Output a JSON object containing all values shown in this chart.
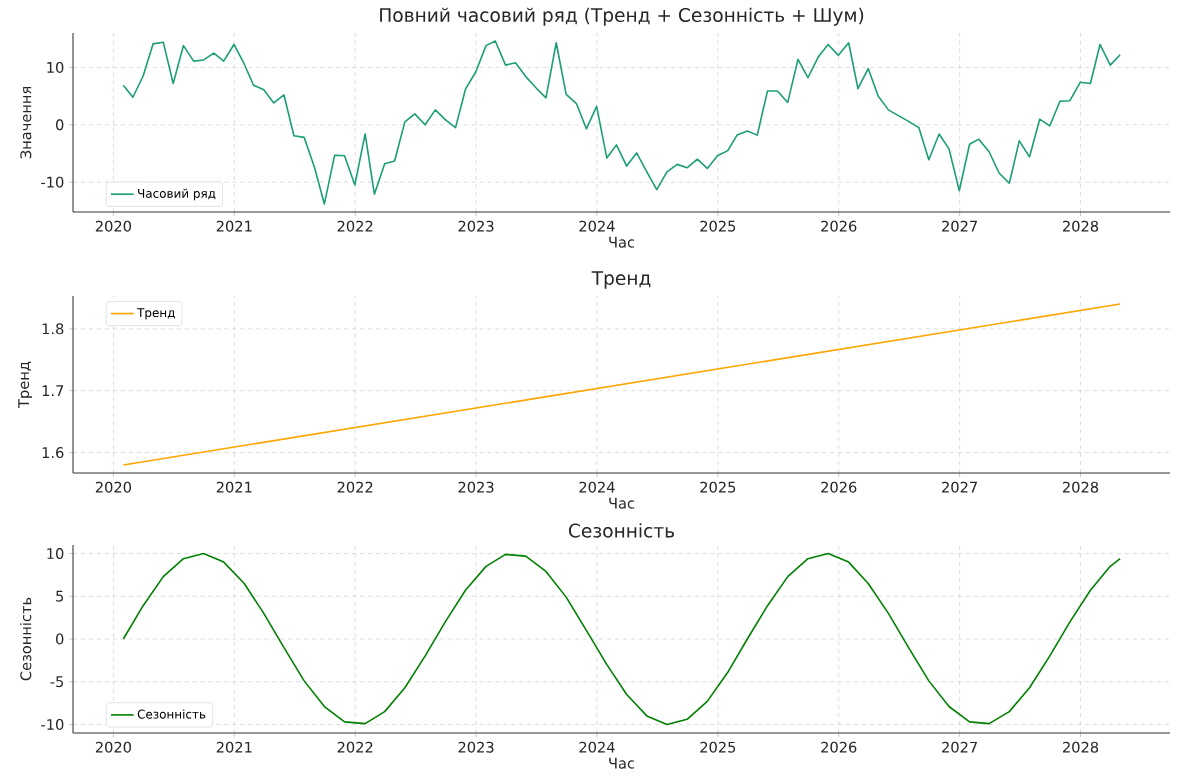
{
  "chart_data": [
    {
      "type": "line",
      "title": "Повний часовий ряд (Тренд + Сезонність + Шум)",
      "xlabel": "Час",
      "ylabel": "Значення",
      "x": [
        "2020-01-31",
        "2020-02-29",
        "2020-03-31",
        "2020-04-30",
        "2020-05-31",
        "2020-06-30",
        "2020-07-31",
        "2020-08-31",
        "2020-09-30",
        "2020-10-31",
        "2020-11-30",
        "2020-12-31",
        "2021-01-31",
        "2021-02-28",
        "2021-03-31",
        "2021-04-30",
        "2021-05-31",
        "2021-06-30",
        "2021-07-31",
        "2021-08-31",
        "2021-09-30",
        "2021-10-31",
        "2021-11-30",
        "2021-12-31",
        "2022-01-31",
        "2022-02-28",
        "2022-03-31",
        "2022-04-30",
        "2022-05-31",
        "2022-06-30",
        "2022-07-31",
        "2022-08-31",
        "2022-09-30",
        "2022-10-31",
        "2022-11-30",
        "2022-12-31",
        "2023-01-31",
        "2023-02-28",
        "2023-03-31",
        "2023-04-30",
        "2023-05-31",
        "2023-06-30",
        "2023-07-31",
        "2023-08-31",
        "2023-09-30",
        "2023-10-31",
        "2023-11-30",
        "2023-12-31",
        "2024-01-31",
        "2024-02-29",
        "2024-03-31",
        "2024-04-30",
        "2024-05-31",
        "2024-06-30",
        "2024-07-31",
        "2024-08-31",
        "2024-09-30",
        "2024-10-31",
        "2024-11-30",
        "2024-12-31",
        "2025-01-31",
        "2025-02-28",
        "2025-03-31",
        "2025-04-30",
        "2025-05-31",
        "2025-06-30",
        "2025-07-31",
        "2025-08-31",
        "2025-09-30",
        "2025-10-31",
        "2025-11-30",
        "2025-12-31",
        "2026-01-31",
        "2026-02-28",
        "2026-03-31",
        "2026-04-30",
        "2026-05-31",
        "2026-06-30",
        "2026-07-31",
        "2026-08-31",
        "2026-09-30",
        "2026-10-31",
        "2026-11-30",
        "2026-12-31",
        "2027-01-31",
        "2027-02-28",
        "2027-03-31",
        "2027-04-30",
        "2027-05-31",
        "2027-06-30",
        "2027-07-31",
        "2027-08-31",
        "2027-09-30",
        "2027-10-31",
        "2027-11-30",
        "2027-12-31",
        "2028-01-31",
        "2028-02-29",
        "2028-03-31",
        "2028-04-30"
      ],
      "series": [
        {
          "name": "Часовий ряд",
          "color": "#1b9e77",
          "values": [
            6.9,
            4.8,
            8.5,
            14.1,
            14.4,
            7.2,
            13.8,
            11.1,
            11.3,
            12.5,
            11.1,
            14.0,
            10.6,
            6.9,
            6.1,
            3.8,
            5.2,
            -1.9,
            -2.2,
            -7.4,
            -13.8,
            -5.3,
            -5.4,
            -10.5,
            -1.6,
            -12.1,
            -6.8,
            -6.3,
            0.5,
            1.9,
            0.0,
            2.6,
            0.9,
            -0.5,
            6.2,
            9.2,
            13.8,
            14.6,
            10.4,
            10.8,
            8.4,
            6.5,
            4.7,
            14.3,
            5.3,
            3.7,
            -0.7,
            3.2,
            -5.8,
            -3.5,
            -7.2,
            -4.9,
            -8.2,
            -11.3,
            -8.2,
            -6.9,
            -7.5,
            -6.0,
            -7.6,
            -5.4,
            -4.5,
            -1.8,
            -1.1,
            -1.8,
            5.9,
            5.9,
            3.9,
            11.4,
            8.2,
            11.8,
            14.0,
            12.1,
            14.3,
            6.3,
            9.8,
            5.0,
            2.6,
            1.6,
            0.6,
            -0.5,
            -6.1,
            -1.6,
            -4.2,
            -11.5,
            -3.4,
            -2.5,
            -4.7,
            -8.4,
            -10.2,
            -2.8,
            -5.6,
            1.0,
            -0.2,
            4.1,
            4.2,
            7.4,
            7.2,
            14.0,
            10.4,
            12.2
          ]
        }
      ],
      "xlim": [
        "2019-09-01",
        "2028-09-28"
      ],
      "xticks": [
        "2020",
        "2021",
        "2022",
        "2023",
        "2024",
        "2025",
        "2026",
        "2027",
        "2028"
      ],
      "ylim": [
        -15.2,
        16.0
      ],
      "yticks": [
        -10,
        0,
        10
      ],
      "grid": true,
      "legend": "bottom left"
    },
    {
      "type": "line",
      "title": "Тренд",
      "xlabel": "Час",
      "ylabel": "Тренд",
      "series": [
        {
          "name": "Тренд",
          "color": "#ffa500",
          "x": [
            "2020-01-31",
            "2028-04-30"
          ],
          "values": [
            1.58,
            1.84
          ]
        }
      ],
      "xlim": [
        "2019-09-01",
        "2028-09-28"
      ],
      "xticks": [
        "2020",
        "2021",
        "2022",
        "2023",
        "2024",
        "2025",
        "2026",
        "2027",
        "2028"
      ],
      "ylim": [
        1.567,
        1.853
      ],
      "yticks": [
        1.6,
        1.7,
        1.8
      ],
      "grid": true,
      "legend": "top left"
    },
    {
      "type": "line",
      "title": "Сезонність",
      "xlabel": "Час",
      "ylabel": "Сезонність",
      "series": [
        {
          "name": "Сезонність",
          "color": "#008000",
          "x": [
            "2020-01-31",
            "2020-03-31",
            "2020-05-31",
            "2020-07-31",
            "2020-09-30",
            "2020-11-30",
            "2021-01-31",
            "2021-03-31",
            "2021-05-31",
            "2021-07-31",
            "2021-09-30",
            "2021-11-30",
            "2022-01-31",
            "2022-03-31",
            "2022-05-31",
            "2022-07-31",
            "2022-09-30",
            "2022-11-30",
            "2023-01-31",
            "2023-03-31",
            "2023-05-31",
            "2023-07-31",
            "2023-09-30",
            "2023-11-30",
            "2024-01-31",
            "2024-03-31",
            "2024-05-31",
            "2024-07-31",
            "2024-09-30",
            "2024-11-30",
            "2025-01-31",
            "2025-03-31",
            "2025-05-31",
            "2025-07-31",
            "2025-09-30",
            "2025-11-30",
            "2026-01-31",
            "2026-03-31",
            "2026-05-31",
            "2026-07-31",
            "2026-09-30",
            "2026-11-30",
            "2027-01-31",
            "2027-03-31",
            "2027-05-31",
            "2027-07-31",
            "2027-09-30",
            "2027-11-30",
            "2028-01-31",
            "2028-03-31",
            "2028-04-30"
          ],
          "values": [
            0,
            3.9,
            7.3,
            9.4,
            10.0,
            9.0,
            6.5,
            3.0,
            -1.0,
            -4.9,
            -7.9,
            -9.7,
            -9.9,
            -8.5,
            -5.7,
            -2.0,
            2.0,
            5.7,
            8.5,
            9.9,
            9.7,
            7.9,
            4.9,
            1.0,
            -3.0,
            -6.5,
            -9.0,
            -10.0,
            -9.4,
            -7.3,
            -3.9,
            0,
            3.9,
            7.3,
            9.4,
            10.0,
            9.0,
            6.5,
            3.0,
            -1.0,
            -4.9,
            -7.9,
            -9.7,
            -9.9,
            -8.5,
            -5.7,
            -2.0,
            2.0,
            5.7,
            8.5,
            9.4
          ]
        }
      ],
      "xlim": [
        "2019-09-01",
        "2028-09-28"
      ],
      "xticks": [
        "2020",
        "2021",
        "2022",
        "2023",
        "2024",
        "2025",
        "2026",
        "2027",
        "2028"
      ],
      "ylim": [
        -11,
        11
      ],
      "yticks": [
        -10,
        -5,
        0,
        5,
        10
      ],
      "grid": true,
      "legend": "bottom left"
    }
  ]
}
